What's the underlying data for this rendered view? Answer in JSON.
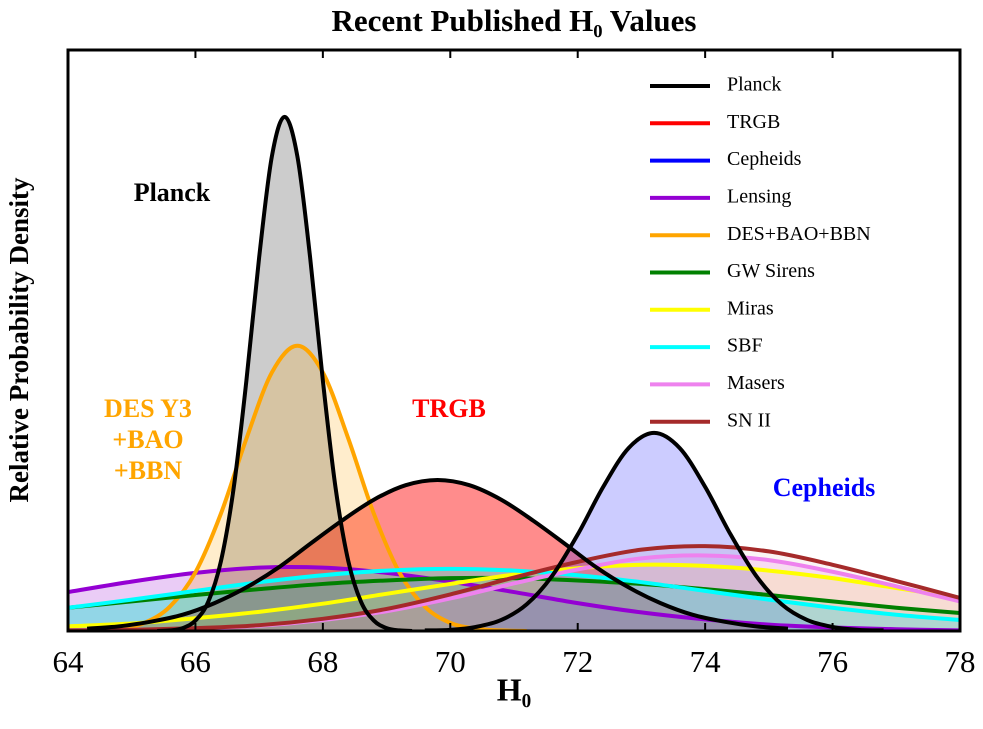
{
  "chart_data": {
    "type": "line",
    "title": "Recent Published H₀ Values",
    "xlabel": "H₀",
    "ylabel": "Relative Probability Density",
    "xlim": [
      64,
      78
    ],
    "xticks": [
      64,
      66,
      68,
      70,
      72,
      74,
      76,
      78
    ],
    "ylim": [
      0,
      100
    ],
    "legend": "upper right",
    "series": [
      {
        "name": "Planck",
        "color": "#000000",
        "fill_color": "#808080",
        "edge_color": "#000000",
        "fill_opacity": 0.4,
        "x": [
          65.4,
          65.6,
          65.8,
          66.0,
          66.2,
          66.4,
          66.6,
          66.8,
          67.0,
          67.2,
          67.4,
          67.6,
          67.8,
          68.0,
          68.2,
          68.4,
          68.6,
          68.8,
          69.0,
          69.2,
          69.4
        ],
        "values": [
          0.0,
          0.1,
          0.5,
          1.8,
          5.0,
          12.0,
          24.6,
          43.1,
          64.3,
          81.7,
          88.5,
          81.7,
          64.3,
          43.1,
          24.6,
          12.0,
          5.0,
          1.8,
          0.5,
          0.1,
          0.0
        ]
      },
      {
        "name": "TRGB",
        "color": "#ff0000",
        "edge_color": "#000000",
        "fill_opacity": 0.45,
        "x": [
          64.3,
          64.8,
          65.3,
          65.8,
          66.3,
          66.8,
          67.3,
          67.8,
          68.3,
          68.8,
          69.3,
          69.8,
          70.3,
          70.8,
          71.3,
          71.8,
          72.3,
          72.8,
          73.3,
          73.8,
          74.3,
          74.8,
          75.3
        ],
        "values": [
          0.4,
          0.8,
          1.6,
          2.8,
          4.8,
          7.5,
          10.9,
          15.0,
          19.0,
          22.6,
          25.1,
          26.0,
          25.1,
          22.6,
          19.0,
          15.0,
          10.9,
          7.5,
          4.8,
          2.8,
          1.6,
          0.8,
          0.4
        ]
      },
      {
        "name": "Cepheids",
        "color": "#0000ff",
        "edge_color": "#000000",
        "fill_opacity": 0.2,
        "x": [
          69.6,
          70.0,
          70.4,
          70.8,
          71.2,
          71.6,
          72.0,
          72.4,
          72.8,
          73.2,
          73.6,
          74.0,
          74.4,
          74.8,
          75.2,
          75.6,
          76.0,
          76.4,
          76.8
        ],
        "values": [
          0.1,
          0.2,
          0.7,
          1.9,
          4.6,
          9.5,
          16.6,
          24.8,
          31.5,
          34.1,
          31.5,
          24.8,
          16.6,
          9.5,
          4.6,
          1.9,
          0.7,
          0.2,
          0.1
        ]
      },
      {
        "name": "Lensing",
        "color": "#9400d3",
        "fill_opacity": 0.2,
        "x": [
          64,
          65,
          66,
          67,
          68,
          69,
          70,
          71,
          72,
          73,
          74,
          75,
          76,
          77,
          78
        ],
        "values": [
          6.7,
          8.5,
          10.0,
          10.9,
          10.9,
          10.0,
          8.5,
          6.7,
          4.8,
          3.2,
          2.0,
          1.1,
          0.6,
          0.3,
          0.1
        ]
      },
      {
        "name": "DES+BAO+BBN",
        "color": "#ffa500",
        "fill_opacity": 0.2,
        "x": [
          64.0,
          64.4,
          64.8,
          65.2,
          65.6,
          66.0,
          66.4,
          66.8,
          67.2,
          67.6,
          68.0,
          68.4,
          68.8,
          69.2,
          69.6,
          70.0,
          70.4,
          70.8,
          71.2
        ],
        "values": [
          0.0,
          0.1,
          0.4,
          1.4,
          4.2,
          10.1,
          20.2,
          33.1,
          44.5,
          49.1,
          44.5,
          33.1,
          20.2,
          10.1,
          4.2,
          1.4,
          0.4,
          0.1,
          0.0
        ]
      },
      {
        "name": "GW Sirens",
        "color": "#008000",
        "fill_opacity": 0.1,
        "x": [
          64,
          65,
          66,
          67,
          68,
          69,
          70,
          71,
          72,
          73,
          74,
          75,
          76,
          77,
          78
        ],
        "values": [
          4.0,
          5.1,
          6.2,
          7.2,
          8.1,
          8.7,
          9.1,
          9.1,
          8.7,
          8.1,
          7.2,
          6.2,
          5.1,
          4.0,
          3.1
        ]
      },
      {
        "name": "Miras",
        "color": "#ffff00",
        "fill_opacity": 0.15,
        "x": [
          64,
          65,
          66,
          67,
          68,
          69,
          70,
          71,
          72,
          73,
          74,
          75,
          76,
          77,
          78
        ],
        "values": [
          0.8,
          1.3,
          2.2,
          3.3,
          4.7,
          6.4,
          8.1,
          9.7,
          10.8,
          11.4,
          11.2,
          10.4,
          9.1,
          7.4,
          5.7
        ]
      },
      {
        "name": "SBF",
        "color": "#00ffff",
        "fill_opacity": 0.3,
        "x": [
          64,
          65,
          66,
          67,
          68,
          69,
          70,
          71,
          72,
          73,
          74,
          75,
          76,
          77,
          78
        ],
        "values": [
          4.0,
          5.4,
          6.9,
          8.4,
          9.6,
          10.4,
          10.7,
          10.4,
          9.6,
          8.4,
          6.9,
          5.4,
          4.0,
          2.8,
          1.9
        ]
      },
      {
        "name": "Masers",
        "color": "#ee82ee",
        "fill_opacity": 0.2,
        "x": [
          64,
          65,
          66,
          67,
          68,
          69,
          70,
          71,
          72,
          73,
          74,
          75,
          76,
          77,
          78
        ],
        "values": [
          0.1,
          0.2,
          0.4,
          0.9,
          1.9,
          3.4,
          5.6,
          8.2,
          10.6,
          12.5,
          13.0,
          12.2,
          10.2,
          7.7,
          5.1
        ]
      },
      {
        "name": "SN II",
        "color": "#a52a2a",
        "fill_opacity": 0.05,
        "x": [
          64,
          65,
          66,
          67,
          68,
          69,
          70,
          71,
          72,
          73,
          74,
          75,
          76,
          77,
          78
        ],
        "values": [
          0.1,
          0.2,
          0.5,
          1.0,
          2.1,
          3.8,
          6.3,
          9.2,
          11.9,
          14.0,
          14.6,
          13.7,
          11.4,
          8.6,
          5.7
        ]
      }
    ],
    "annotations": [
      {
        "text": [
          "Planck"
        ],
        "color": "#000000"
      },
      {
        "text": [
          "DES Y3",
          "+BAO",
          "+BBN"
        ],
        "color": "#ffa500"
      },
      {
        "text": [
          "TRGB"
        ],
        "color": "#ff0000"
      },
      {
        "text": [
          "Cepheids"
        ],
        "color": "#0000ff"
      }
    ]
  }
}
